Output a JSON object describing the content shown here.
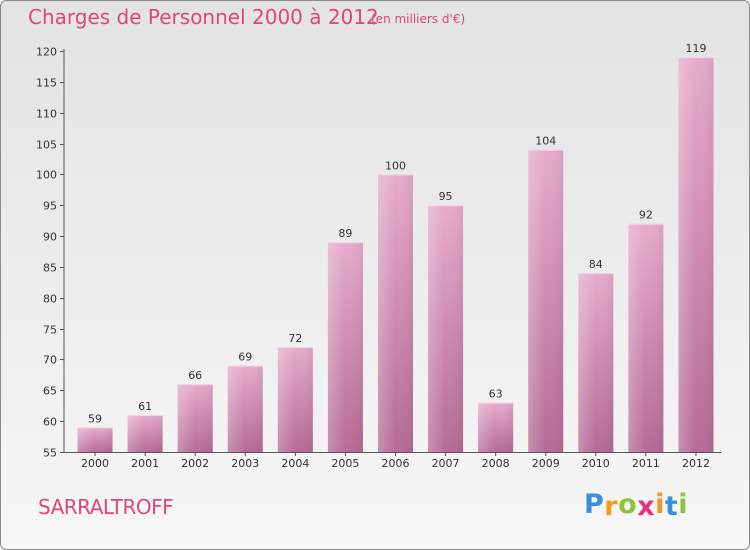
{
  "header": {
    "title": "Charges de Personnel 2000 à 2012",
    "subtitle": "(en milliers d'€)"
  },
  "footer": {
    "city": "SARRALTROFF",
    "logo_letters": [
      "P",
      "r",
      "o",
      "x",
      "i",
      "t",
      "i"
    ],
    "logo_colors": [
      "#3b8ed8",
      "#f39a1e",
      "#8fc43a",
      "#e7307e",
      "#f39a1e",
      "#3b8ed8",
      "#8fc43a"
    ]
  },
  "colors": {
    "title": "#e0457b",
    "bar_light": "#e6abcb",
    "bar_dark": "#b56b96"
  },
  "chart_data": {
    "type": "bar",
    "categories": [
      "2000",
      "2001",
      "2002",
      "2003",
      "2004",
      "2005",
      "2006",
      "2007",
      "2008",
      "2009",
      "2010",
      "2011",
      "2012"
    ],
    "values": [
      59,
      61,
      66,
      69,
      72,
      89,
      100,
      95,
      63,
      104,
      84,
      92,
      119
    ],
    "title": "Charges de Personnel 2000 à 2012",
    "subtitle": "(en milliers d'€)",
    "ylim": [
      55,
      120
    ],
    "yticks": [
      55,
      60,
      65,
      70,
      75,
      80,
      85,
      90,
      95,
      100,
      105,
      110,
      115,
      120
    ],
    "grid": false,
    "data_labels": true
  }
}
